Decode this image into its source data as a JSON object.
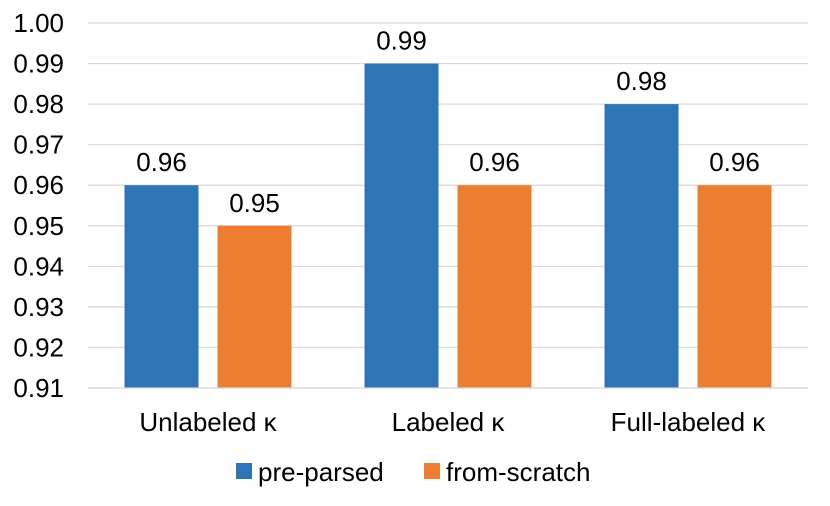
{
  "chart_data": {
    "type": "bar",
    "categories": [
      "Unlabeled κ",
      "Labeled κ",
      "Full-labeled κ"
    ],
    "series": [
      {
        "name": "pre-parsed",
        "values": [
          0.96,
          0.99,
          0.98
        ],
        "color": "#2E75B6"
      },
      {
        "name": "from-scratch",
        "values": [
          0.95,
          0.96,
          0.96
        ],
        "color": "#ED7D31"
      }
    ],
    "data_labels": [
      [
        "0.96",
        "0.99",
        "0.98"
      ],
      [
        "0.95",
        "0.96",
        "0.96"
      ]
    ],
    "yticks": [
      0.91,
      0.92,
      0.93,
      0.94,
      0.95,
      0.96,
      0.97,
      0.98,
      0.99,
      1.0
    ],
    "ytick_labels": [
      "0.91",
      "0.92",
      "0.93",
      "0.94",
      "0.95",
      "0.96",
      "0.97",
      "0.98",
      "0.99",
      "1.00"
    ],
    "ylim": [
      0.91,
      1.0
    ],
    "grid": true,
    "gridline_color": "#D9D9D9",
    "legend_position": "bottom"
  }
}
